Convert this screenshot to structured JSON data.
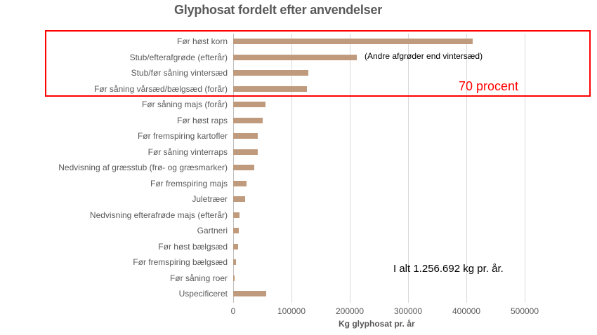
{
  "chart_data": {
    "type": "bar",
    "orientation": "horizontal",
    "title": "Glyphosat fordelt efter anvendelser",
    "xlabel": "Kg glyphosat pr. år",
    "ylabel": "",
    "xlim": [
      0,
      500000
    ],
    "xticks": [
      "0",
      "100000",
      "200000",
      "300000",
      "400000",
      "500000"
    ],
    "grid": true,
    "bar_color": "#c09a7c",
    "categories": [
      "Før høst korn",
      "Stub/efterafgrøde (efterår)",
      "Stub/før såning vintersæd",
      "Før såning vårsæd/bælgsæd (forår)",
      "Før såning majs (forår)",
      "Før høst raps",
      "Før fremspiring kartofler",
      "Før såning vinterraps",
      "Nedvisning af græsstub (frø- og græsmarker)",
      "Før fremspiring majs",
      "Juletræer",
      "Nedvisning efterafrøde majs (efterår)",
      "Gartneri",
      "Før høst bælgsæd",
      "Før fremspiring bælgsæd",
      "Før såning roer",
      "Uspecificeret"
    ],
    "values": [
      411000,
      212000,
      129000,
      127000,
      55000,
      50000,
      42000,
      42000,
      36000,
      23000,
      20000,
      11000,
      10000,
      8500,
      4500,
      3000,
      57000
    ],
    "annotations": [
      {
        "text": "(Andre afgrøder end vintersæd)",
        "color": "#000000"
      },
      {
        "text": "70 procent",
        "color": "#ff0000"
      },
      {
        "text": "I alt 1.256.692 kg pr. år.",
        "color": "#000000"
      }
    ],
    "highlight_box": {
      "color": "#ff0000",
      "covers_categories": [
        0,
        1,
        2,
        3
      ]
    }
  }
}
